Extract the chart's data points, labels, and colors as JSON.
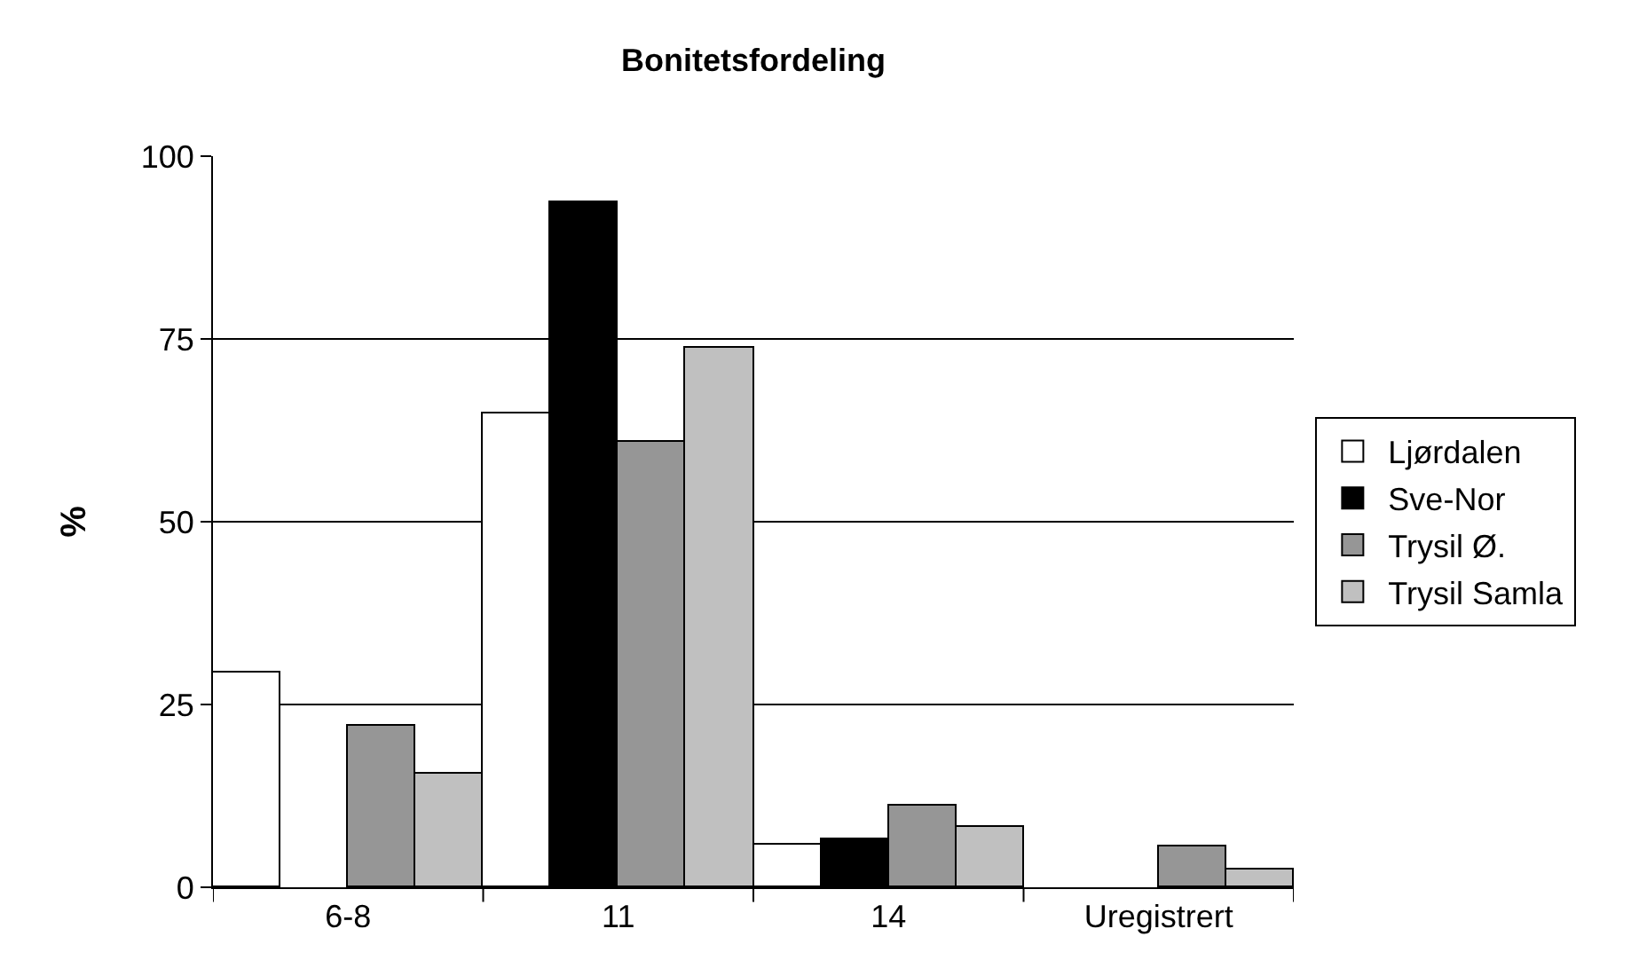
{
  "chart_data": {
    "type": "bar",
    "title": "Bonitetsfordeling",
    "ylabel": "%",
    "categories": [
      "6-8",
      "11",
      "14",
      "Uregistrert"
    ],
    "series": [
      {
        "name": "Ljørdalen",
        "color": "#ffffff",
        "values": [
          29.4,
          64.7,
          5.9,
          null
        ]
      },
      {
        "name": "Sve-Nor",
        "color": "#000000",
        "values": [
          null,
          93.7,
          6.5,
          null
        ]
      },
      {
        "name": "Trysil Ø.",
        "color": "#969696",
        "values": [
          22.2,
          61.0,
          11.1,
          5.6
        ]
      },
      {
        "name": "Trysil Samla",
        "color": "#c0c0c0",
        "values": [
          15.5,
          73.8,
          8.3,
          2.4
        ]
      }
    ],
    "ylim": [
      0,
      100
    ],
    "yticks": [
      0,
      25,
      50,
      75,
      100
    ],
    "grid": "y",
    "legend": "right"
  }
}
